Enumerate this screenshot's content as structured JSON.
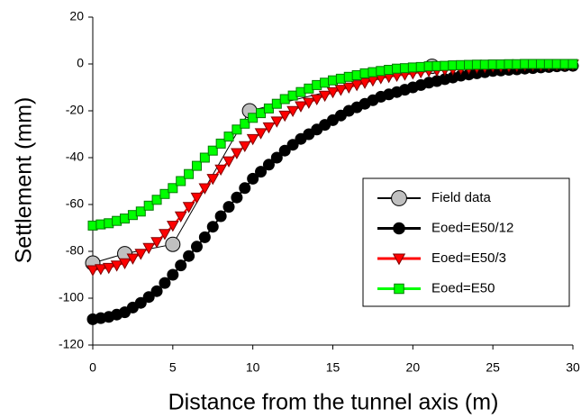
{
  "chart_data": {
    "type": "line",
    "xlabel": "Distance from the tunnel axis (m)",
    "ylabel": "Settlement (mm)",
    "xlim": [
      0,
      30
    ],
    "xticks": [
      0,
      5,
      10,
      15,
      20,
      25,
      30
    ],
    "ylim": [
      -120,
      20
    ],
    "yticks": [
      -120,
      -100,
      -80,
      -60,
      -40,
      -20,
      0,
      20
    ],
    "legend": "lower right",
    "x": [
      0,
      0.5,
      1,
      1.5,
      2,
      2.5,
      3,
      3.5,
      4,
      4.5,
      5,
      5.5,
      6,
      6.5,
      7,
      7.5,
      8,
      8.5,
      9,
      9.5,
      10,
      10.5,
      11,
      11.5,
      12,
      12.5,
      13,
      13.5,
      14,
      14.5,
      15,
      15.5,
      16,
      16.5,
      17,
      17.5,
      18,
      18.5,
      19,
      19.5,
      20,
      20.5,
      21,
      21.5,
      22,
      22.5,
      23,
      23.5,
      24,
      24.5,
      25,
      25.5,
      26,
      26.5,
      27,
      27.5,
      28,
      28.5,
      29,
      29.5,
      30
    ],
    "series": [
      {
        "name": "Field data",
        "color": "#c0c0c0",
        "marker": "circle",
        "x": [
          0,
          2,
          5,
          9.8,
          21.2
        ],
        "values": [
          -85,
          -81,
          -77,
          -20,
          -1
        ]
      },
      {
        "name": "Eoed=E50/12",
        "color": "#000000",
        "marker": "circle",
        "values": [
          -109,
          -108.5,
          -108,
          -107,
          -106,
          -104,
          -102,
          -99.5,
          -97,
          -93.5,
          -90,
          -86,
          -82,
          -78,
          -74,
          -69.5,
          -65,
          -61,
          -57,
          -53,
          -49,
          -46,
          -43,
          -40,
          -37,
          -34.5,
          -32,
          -30,
          -28,
          -26,
          -24,
          -22,
          -20,
          -18.5,
          -17,
          -15.5,
          -14,
          -13,
          -12,
          -11,
          -10,
          -9,
          -8,
          -7.3,
          -6.5,
          -5.8,
          -5,
          -4.5,
          -4,
          -3.5,
          -3,
          -2.8,
          -2.5,
          -2.3,
          -2,
          -1.8,
          -1.5,
          -1.3,
          -1,
          -0.9,
          -0.8
        ]
      },
      {
        "name": "Eoed=E50/3",
        "color": "#ff0000",
        "marker": "triangle-down",
        "values": [
          -88,
          -87.5,
          -87,
          -86,
          -85,
          -83,
          -81,
          -78.5,
          -76,
          -72.5,
          -69,
          -65,
          -61,
          -57,
          -53,
          -49,
          -45,
          -41.5,
          -38,
          -35,
          -32,
          -29.5,
          -27,
          -24.5,
          -22,
          -20,
          -18,
          -16.5,
          -15,
          -13.5,
          -12,
          -11,
          -10,
          -9,
          -8,
          -7,
          -6,
          -5.5,
          -5,
          -4.5,
          -4,
          -3.5,
          -3,
          -2.8,
          -2.5,
          -2.3,
          -2,
          -1.8,
          -1.5,
          -1.3,
          -1,
          -1,
          -1,
          -0.8,
          -0.5,
          -0.5,
          -0.5,
          -0.4,
          -0.3,
          -0.3,
          -0.2
        ]
      },
      {
        "name": "Eoed=E50",
        "color": "#00ff00",
        "marker": "square",
        "values": [
          -69,
          -68.5,
          -68,
          -67,
          -66,
          -64.5,
          -63,
          -60.5,
          -58,
          -55.5,
          -53,
          -50,
          -47,
          -43.5,
          -40,
          -37,
          -34,
          -31,
          -28,
          -25.5,
          -23,
          -21,
          -19,
          -17,
          -15,
          -13.5,
          -12,
          -10.5,
          -9,
          -8,
          -7,
          -6.3,
          -5.5,
          -4.8,
          -4,
          -3.5,
          -3,
          -2.5,
          -2,
          -1.8,
          -1.5,
          -1.3,
          -1,
          -0.9,
          -0.8,
          -0.6,
          -0.5,
          -0.4,
          -0.3,
          -0.3,
          -0.2,
          -0.2,
          -0.1,
          -0.1,
          0,
          0,
          0,
          0,
          0,
          0,
          0
        ]
      }
    ]
  }
}
